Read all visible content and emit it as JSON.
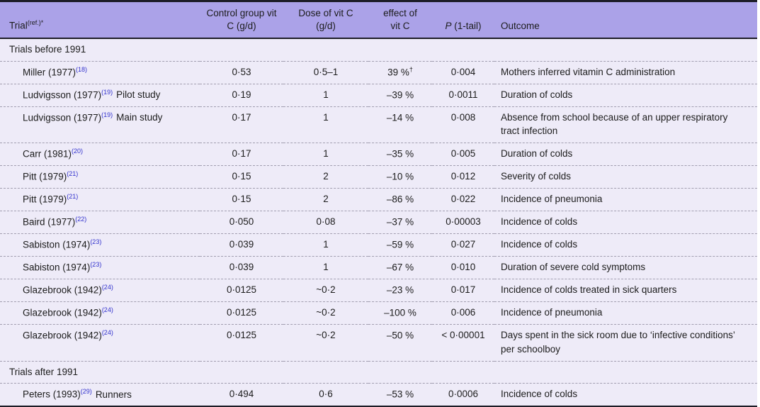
{
  "table": {
    "colors": {
      "header_bg": "#aba2e8",
      "body_bg": "#eeebf8",
      "border_dark": "#1d1d27",
      "ref_blue": "#3232cd",
      "dashed": "#a29eb0"
    },
    "header": {
      "trial_label": "Trial",
      "trial_sup": "(ref.)*",
      "control_label": "Control group vit\nC (g/d)",
      "dose_label": "Dose of vit C\n(g/d)",
      "effect_label": "effect of\nvit C",
      "p_italic": "P",
      "p_rest": " (1-tail)",
      "outcome_label": "Outcome"
    },
    "sections": [
      {
        "header": "Trials before 1991",
        "rows": [
          {
            "trial": "Miller (1977)",
            "ref": "(18)",
            "suffix": "",
            "control": "0·53",
            "dose": "0·5–1",
            "effect": "39 %",
            "effect_sup": "†",
            "p": "0·004",
            "outcome": "Mothers inferred vitamin C administration"
          },
          {
            "trial": "Ludvigsson (1977)",
            "ref": "(19)",
            "suffix": "Pilot study",
            "control": "0·19",
            "dose": "1",
            "effect": "–39 %",
            "effect_sup": "",
            "p": "0·0011",
            "outcome": "Duration of colds"
          },
          {
            "trial": "Ludvigsson (1977)",
            "ref": "(19)",
            "suffix": "Main study",
            "control": "0·17",
            "dose": "1",
            "effect": "–14 %",
            "effect_sup": "",
            "p": "0·008",
            "outcome": "Absence from school because of an upper respiratory tract infection"
          },
          {
            "trial": "Carr (1981)",
            "ref": "(20)",
            "suffix": "",
            "control": "0·17",
            "dose": "1",
            "effect": "–35 %",
            "effect_sup": "",
            "p": "0·005",
            "outcome": "Duration of colds"
          },
          {
            "trial": "Pitt (1979)",
            "ref": "(21)",
            "suffix": "",
            "control": "0·15",
            "dose": "2",
            "effect": "–10 %",
            "effect_sup": "",
            "p": "0·012",
            "outcome": "Severity of colds"
          },
          {
            "trial": "Pitt (1979)",
            "ref": "(21)",
            "suffix": "",
            "control": "0·15",
            "dose": "2",
            "effect": "–86 %",
            "effect_sup": "",
            "p": "0·022",
            "outcome": "Incidence of pneumonia"
          },
          {
            "trial": "Baird (1977)",
            "ref": "(22)",
            "suffix": "",
            "control": "0·050",
            "dose": "0·08",
            "effect": "–37 %",
            "effect_sup": "",
            "p": "0·00003",
            "outcome": "Incidence of colds"
          },
          {
            "trial": "Sabiston (1974)",
            "ref": "(23)",
            "suffix": "",
            "control": "0·039",
            "dose": "1",
            "effect": "–59 %",
            "effect_sup": "",
            "p": "0·027",
            "outcome": "Incidence of colds"
          },
          {
            "trial": "Sabiston (1974)",
            "ref": "(23)",
            "suffix": "",
            "control": "0·039",
            "dose": "1",
            "effect": "–67 %",
            "effect_sup": "",
            "p": "0·010",
            "outcome": "Duration of severe cold symptoms"
          },
          {
            "trial": "Glazebrook (1942)",
            "ref": "(24)",
            "suffix": "",
            "control": "0·0125",
            "dose": "~0·2",
            "effect": "–23 %",
            "effect_sup": "",
            "p": "0·017",
            "outcome": "Incidence of colds treated in sick quarters"
          },
          {
            "trial": "Glazebrook (1942)",
            "ref": "(24)",
            "suffix": "",
            "control": "0·0125",
            "dose": "~0·2",
            "effect": "–100 %",
            "effect_sup": "",
            "p": "0·006",
            "outcome": "Incidence of pneumonia"
          },
          {
            "trial": "Glazebrook (1942)",
            "ref": "(24)",
            "suffix": "",
            "control": "0·0125",
            "dose": "~0·2",
            "effect": "–50 %",
            "effect_sup": "",
            "p": "< 0·00001",
            "outcome": "Days spent in the sick room due to ‘infective conditions’ per schoolboy"
          }
        ]
      },
      {
        "header": "Trials after 1991",
        "rows": [
          {
            "trial": "Peters (1993)",
            "ref": "(29)",
            "suffix": "Runners",
            "control": "0·494",
            "dose": "0·6",
            "effect": "–53 %",
            "effect_sup": "",
            "p": "0·0006",
            "outcome": "Incidence of colds"
          }
        ]
      }
    ]
  }
}
